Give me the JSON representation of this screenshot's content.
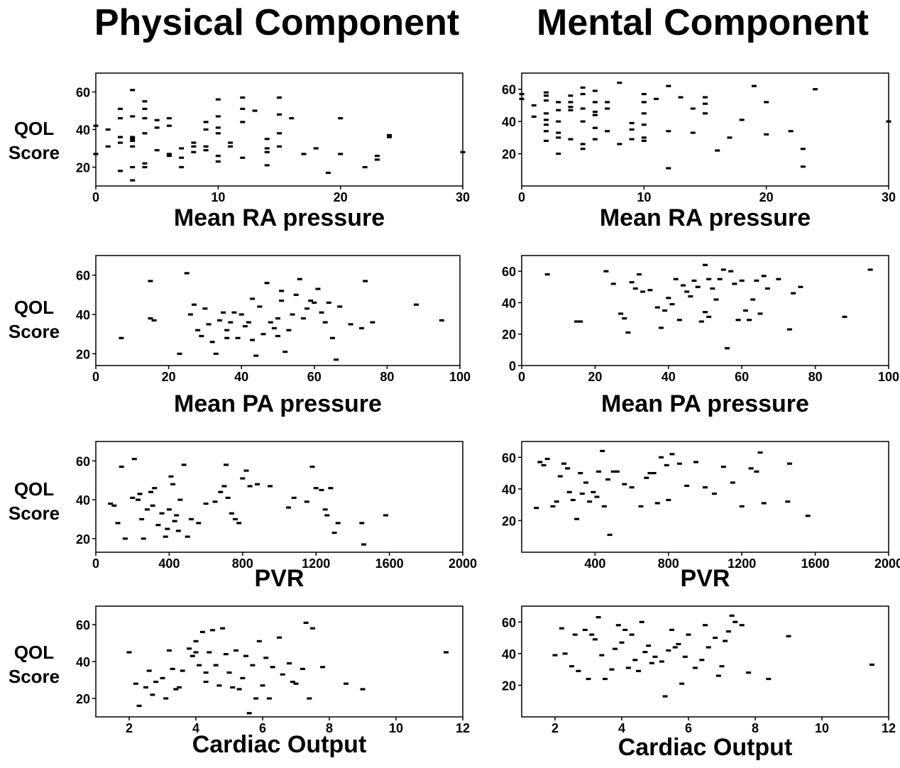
{
  "titles": {
    "left": "Physical Component",
    "right": "Mental Component"
  },
  "ylabel": {
    "line1": "QOL",
    "line2": "Score"
  },
  "chart_data": [
    {
      "type": "scatter",
      "column": "Physical Component",
      "xlabel": "Mean RA pressure",
      "ylabel": "QOL Score",
      "xlim": [
        0,
        30
      ],
      "ylim": [
        10,
        70
      ],
      "xticks": [
        0,
        10,
        20,
        30
      ],
      "yticks": [
        20,
        40,
        60
      ],
      "x": [
        0,
        0,
        1,
        1,
        2,
        2,
        2,
        2,
        2,
        3,
        3,
        3,
        3,
        3,
        3,
        3,
        3,
        4,
        4,
        4,
        4,
        4,
        4,
        5,
        5,
        5,
        6,
        6,
        6,
        6,
        7,
        7,
        7,
        8,
        8,
        8,
        9,
        9,
        9,
        9,
        10,
        10,
        10,
        10,
        10,
        10,
        11,
        11,
        12,
        12,
        12,
        12,
        13,
        14,
        14,
        14,
        14,
        15,
        15,
        15,
        15,
        16,
        17,
        18,
        19,
        20,
        20,
        22,
        23,
        23,
        24,
        24,
        30
      ],
      "y": [
        27,
        42,
        40,
        31,
        18,
        33,
        36,
        46,
        51,
        61,
        47,
        35,
        36,
        34,
        31,
        13,
        20,
        22,
        20,
        38,
        46,
        51,
        55,
        29,
        41,
        45,
        26,
        27,
        42,
        46,
        20,
        25,
        30,
        28,
        33,
        31,
        29,
        31,
        40,
        44,
        56,
        47,
        41,
        38,
        23,
        26,
        33,
        31,
        57,
        51,
        44,
        25,
        50,
        35,
        21,
        28,
        30,
        57,
        48,
        38,
        31,
        46,
        27,
        30,
        17,
        46,
        27,
        20,
        24,
        26,
        36,
        37,
        28
      ]
    },
    {
      "type": "scatter",
      "column": "Mental Component",
      "xlabel": "Mean RA pressure",
      "ylabel": "QOL Score",
      "xlim": [
        0,
        30
      ],
      "ylim": [
        0,
        70
      ],
      "xticks": [
        0,
        10,
        20,
        30
      ],
      "yticks": [
        20,
        40,
        60
      ],
      "x": [
        0,
        0,
        1,
        1,
        2,
        2,
        2,
        2,
        2,
        2,
        2,
        2,
        3,
        3,
        3,
        3,
        3,
        3,
        4,
        4,
        4,
        4,
        4,
        5,
        5,
        5,
        5,
        5,
        5,
        6,
        6,
        6,
        6,
        6,
        6,
        7,
        7,
        7,
        8,
        8,
        9,
        9,
        9,
        10,
        10,
        10,
        10,
        10,
        10,
        11,
        12,
        12,
        12,
        13,
        14,
        14,
        15,
        15,
        15,
        16,
        17,
        18,
        19,
        20,
        20,
        22,
        23,
        23,
        24,
        30
      ],
      "y": [
        57,
        54,
        50,
        43,
        58,
        56,
        53,
        45,
        41,
        38,
        34,
        28,
        52,
        47,
        40,
        33,
        30,
        20,
        56,
        52,
        49,
        47,
        29,
        61,
        57,
        48,
        40,
        26,
        23,
        59,
        52,
        46,
        44,
        36,
        29,
        52,
        48,
        34,
        64,
        26,
        39,
        35,
        29,
        57,
        52,
        45,
        38,
        30,
        28,
        54,
        62,
        34,
        11,
        55,
        48,
        33,
        55,
        51,
        45,
        22,
        30,
        41,
        62,
        52,
        32,
        34,
        23,
        12,
        60,
        40
      ]
    },
    {
      "type": "scatter",
      "column": "Physical Component",
      "xlabel": "Mean PA pressure",
      "ylabel": "QOL Score",
      "xlim": [
        0,
        100
      ],
      "ylim": [
        14,
        70
      ],
      "xticks": [
        0,
        20,
        40,
        60,
        80,
        100
      ],
      "yticks": [
        20,
        40,
        60
      ],
      "x": [
        7,
        15,
        15,
        16,
        23,
        25,
        26,
        27,
        28,
        29,
        30,
        31,
        32,
        33,
        34,
        35,
        36,
        36,
        37,
        38,
        39,
        40,
        41,
        42,
        43,
        43,
        44,
        45,
        46,
        47,
        48,
        49,
        50,
        50,
        51,
        51,
        52,
        53,
        54,
        55,
        56,
        57,
        58,
        59,
        60,
        61,
        62,
        63,
        64,
        65,
        66,
        67,
        70,
        73,
        74,
        76,
        88,
        95
      ],
      "y": [
        28,
        57,
        38,
        37,
        20,
        61,
        40,
        45,
        32,
        29,
        43,
        35,
        26,
        20,
        37,
        41,
        28,
        32,
        36,
        41,
        28,
        40,
        34,
        36,
        48,
        27,
        19,
        44,
        30,
        56,
        36,
        33,
        29,
        38,
        47,
        52,
        21,
        32,
        40,
        50,
        58,
        38,
        43,
        47,
        46,
        53,
        41,
        36,
        46,
        28,
        17,
        44,
        35,
        33,
        57,
        36,
        45,
        37
      ]
    },
    {
      "type": "scatter",
      "column": "Mental Component",
      "xlabel": "Mean PA pressure",
      "ylabel": "QOL Score",
      "xlim": [
        0,
        100
      ],
      "ylim": [
        0,
        70
      ],
      "xticks": [
        0,
        20,
        40,
        60,
        80,
        100
      ],
      "yticks": [
        0,
        20,
        40,
        60
      ],
      "x": [
        7,
        15,
        16,
        23,
        25,
        27,
        28,
        29,
        30,
        31,
        32,
        33,
        35,
        37,
        38,
        39,
        40,
        41,
        42,
        43,
        44,
        45,
        46,
        47,
        48,
        49,
        50,
        50,
        51,
        51,
        52,
        53,
        54,
        55,
        56,
        57,
        58,
        59,
        60,
        61,
        62,
        63,
        64,
        65,
        66,
        67,
        70,
        73,
        74,
        76,
        88,
        95
      ],
      "y": [
        58,
        28,
        28,
        60,
        52,
        33,
        30,
        21,
        53,
        49,
        58,
        47,
        48,
        37,
        24,
        35,
        43,
        39,
        55,
        29,
        51,
        47,
        44,
        54,
        50,
        28,
        64,
        34,
        55,
        31,
        49,
        42,
        55,
        61,
        11,
        60,
        52,
        29,
        54,
        35,
        29,
        42,
        54,
        33,
        57,
        49,
        55,
        23,
        46,
        50,
        31,
        61
      ]
    },
    {
      "type": "scatter",
      "column": "Physical Component",
      "xlabel": "PVR",
      "ylabel": "QOL Score",
      "xlim": [
        0,
        2000
      ],
      "ylim": [
        13,
        70
      ],
      "xticks": [
        0,
        400,
        800,
        1200,
        1600,
        2000
      ],
      "yticks": [
        20,
        40,
        60
      ],
      "x": [
        80,
        100,
        120,
        140,
        160,
        200,
        210,
        230,
        240,
        250,
        260,
        280,
        300,
        310,
        320,
        340,
        360,
        380,
        390,
        400,
        410,
        420,
        430,
        440,
        450,
        460,
        480,
        500,
        520,
        560,
        600,
        650,
        680,
        700,
        710,
        720,
        740,
        760,
        780,
        800,
        820,
        840,
        880,
        950,
        1050,
        1080,
        1150,
        1180,
        1200,
        1230,
        1250,
        1260,
        1280,
        1300,
        1320,
        1450,
        1460,
        1580
      ],
      "y": [
        38,
        37,
        28,
        57,
        20,
        41,
        61,
        40,
        43,
        30,
        20,
        35,
        44,
        37,
        46,
        27,
        33,
        21,
        25,
        35,
        52,
        48,
        29,
        32,
        24,
        40,
        58,
        21,
        30,
        28,
        38,
        39,
        44,
        47,
        58,
        41,
        33,
        30,
        28,
        51,
        55,
        47,
        48,
        47,
        36,
        41,
        39,
        57,
        46,
        45,
        35,
        32,
        46,
        23,
        28,
        28,
        17,
        32
      ]
    },
    {
      "type": "scatter",
      "column": "Mental Component",
      "xlabel": "PVR",
      "ylabel": "QOL Score",
      "xlim": [
        0,
        2000
      ],
      "ylim": [
        0,
        70
      ],
      "xticks": [
        400,
        800,
        1200,
        1600,
        2000
      ],
      "yticks": [
        20,
        40,
        60
      ],
      "x": [
        80,
        100,
        120,
        140,
        170,
        190,
        210,
        230,
        250,
        260,
        280,
        300,
        320,
        330,
        350,
        370,
        390,
        410,
        420,
        440,
        450,
        470,
        480,
        500,
        520,
        560,
        600,
        650,
        680,
        700,
        720,
        740,
        760,
        790,
        800,
        820,
        860,
        900,
        950,
        1000,
        1050,
        1100,
        1150,
        1200,
        1250,
        1280,
        1300,
        1320,
        1450,
        1460,
        1560
      ],
      "y": [
        28,
        57,
        55,
        59,
        29,
        32,
        48,
        56,
        53,
        38,
        33,
        21,
        50,
        37,
        44,
        32,
        38,
        35,
        51,
        64,
        29,
        46,
        11,
        51,
        51,
        43,
        41,
        29,
        47,
        50,
        50,
        31,
        60,
        55,
        33,
        62,
        56,
        42,
        57,
        41,
        37,
        54,
        44,
        29,
        53,
        51,
        63,
        31,
        32,
        56,
        23
      ]
    },
    {
      "type": "scatter",
      "column": "Physical Component",
      "xlabel": "Cardiac Output",
      "ylabel": "QOL Score",
      "xlim": [
        1,
        12
      ],
      "ylim": [
        10,
        70
      ],
      "xticks": [
        2,
        4,
        6,
        8,
        10,
        12
      ],
      "yticks": [
        20,
        40,
        60
      ],
      "x": [
        2.0,
        2.2,
        2.3,
        2.5,
        2.6,
        2.7,
        2.8,
        3.0,
        3.1,
        3.2,
        3.3,
        3.4,
        3.5,
        3.6,
        3.8,
        3.9,
        4.0,
        4.0,
        4.1,
        4.2,
        4.3,
        4.3,
        4.4,
        4.5,
        4.6,
        4.7,
        4.8,
        4.9,
        5.0,
        5.1,
        5.2,
        5.3,
        5.4,
        5.5,
        5.6,
        5.7,
        5.8,
        5.9,
        6.0,
        6.1,
        6.2,
        6.3,
        6.5,
        6.6,
        6.8,
        6.9,
        7.0,
        7.2,
        7.3,
        7.4,
        7.5,
        7.8,
        8.5,
        9.0,
        11.5
      ],
      "y": [
        45,
        28,
        16,
        26,
        35,
        22,
        29,
        31,
        20,
        46,
        36,
        25,
        26,
        35,
        47,
        43,
        51,
        45,
        38,
        56,
        34,
        29,
        45,
        57,
        38,
        27,
        58,
        44,
        34,
        26,
        46,
        25,
        31,
        43,
        12,
        38,
        20,
        51,
        27,
        42,
        20,
        37,
        53,
        33,
        39,
        29,
        28,
        36,
        61,
        20,
        58,
        37,
        28,
        25,
        45
      ]
    },
    {
      "type": "scatter",
      "column": "Mental Component",
      "xlabel": "Cardiac Output",
      "ylabel": "QOL Score",
      "xlim": [
        1,
        12
      ],
      "ylim": [
        0,
        70
      ],
      "xticks": [
        2,
        4,
        6,
        8,
        10,
        12
      ],
      "yticks": [
        20,
        40,
        60
      ],
      "x": [
        2.0,
        2.2,
        2.3,
        2.5,
        2.6,
        2.7,
        2.9,
        3.0,
        3.1,
        3.2,
        3.3,
        3.4,
        3.5,
        3.7,
        3.8,
        3.9,
        4.0,
        4.1,
        4.2,
        4.3,
        4.4,
        4.5,
        4.6,
        4.7,
        4.8,
        4.9,
        5.0,
        5.2,
        5.3,
        5.4,
        5.5,
        5.6,
        5.7,
        5.8,
        5.9,
        6.0,
        6.2,
        6.4,
        6.5,
        6.6,
        6.8,
        6.9,
        7.0,
        7.1,
        7.2,
        7.3,
        7.4,
        7.6,
        7.8,
        8.4,
        9.0,
        11.5
      ],
      "y": [
        39,
        56,
        40,
        32,
        52,
        29,
        55,
        24,
        52,
        49,
        63,
        39,
        24,
        30,
        43,
        58,
        47,
        55,
        31,
        52,
        36,
        29,
        60,
        41,
        45,
        34,
        38,
        35,
        13,
        42,
        55,
        44,
        46,
        21,
        38,
        52,
        31,
        36,
        58,
        44,
        50,
        26,
        32,
        48,
        54,
        64,
        60,
        58,
        28,
        24,
        51,
        33
      ]
    }
  ]
}
